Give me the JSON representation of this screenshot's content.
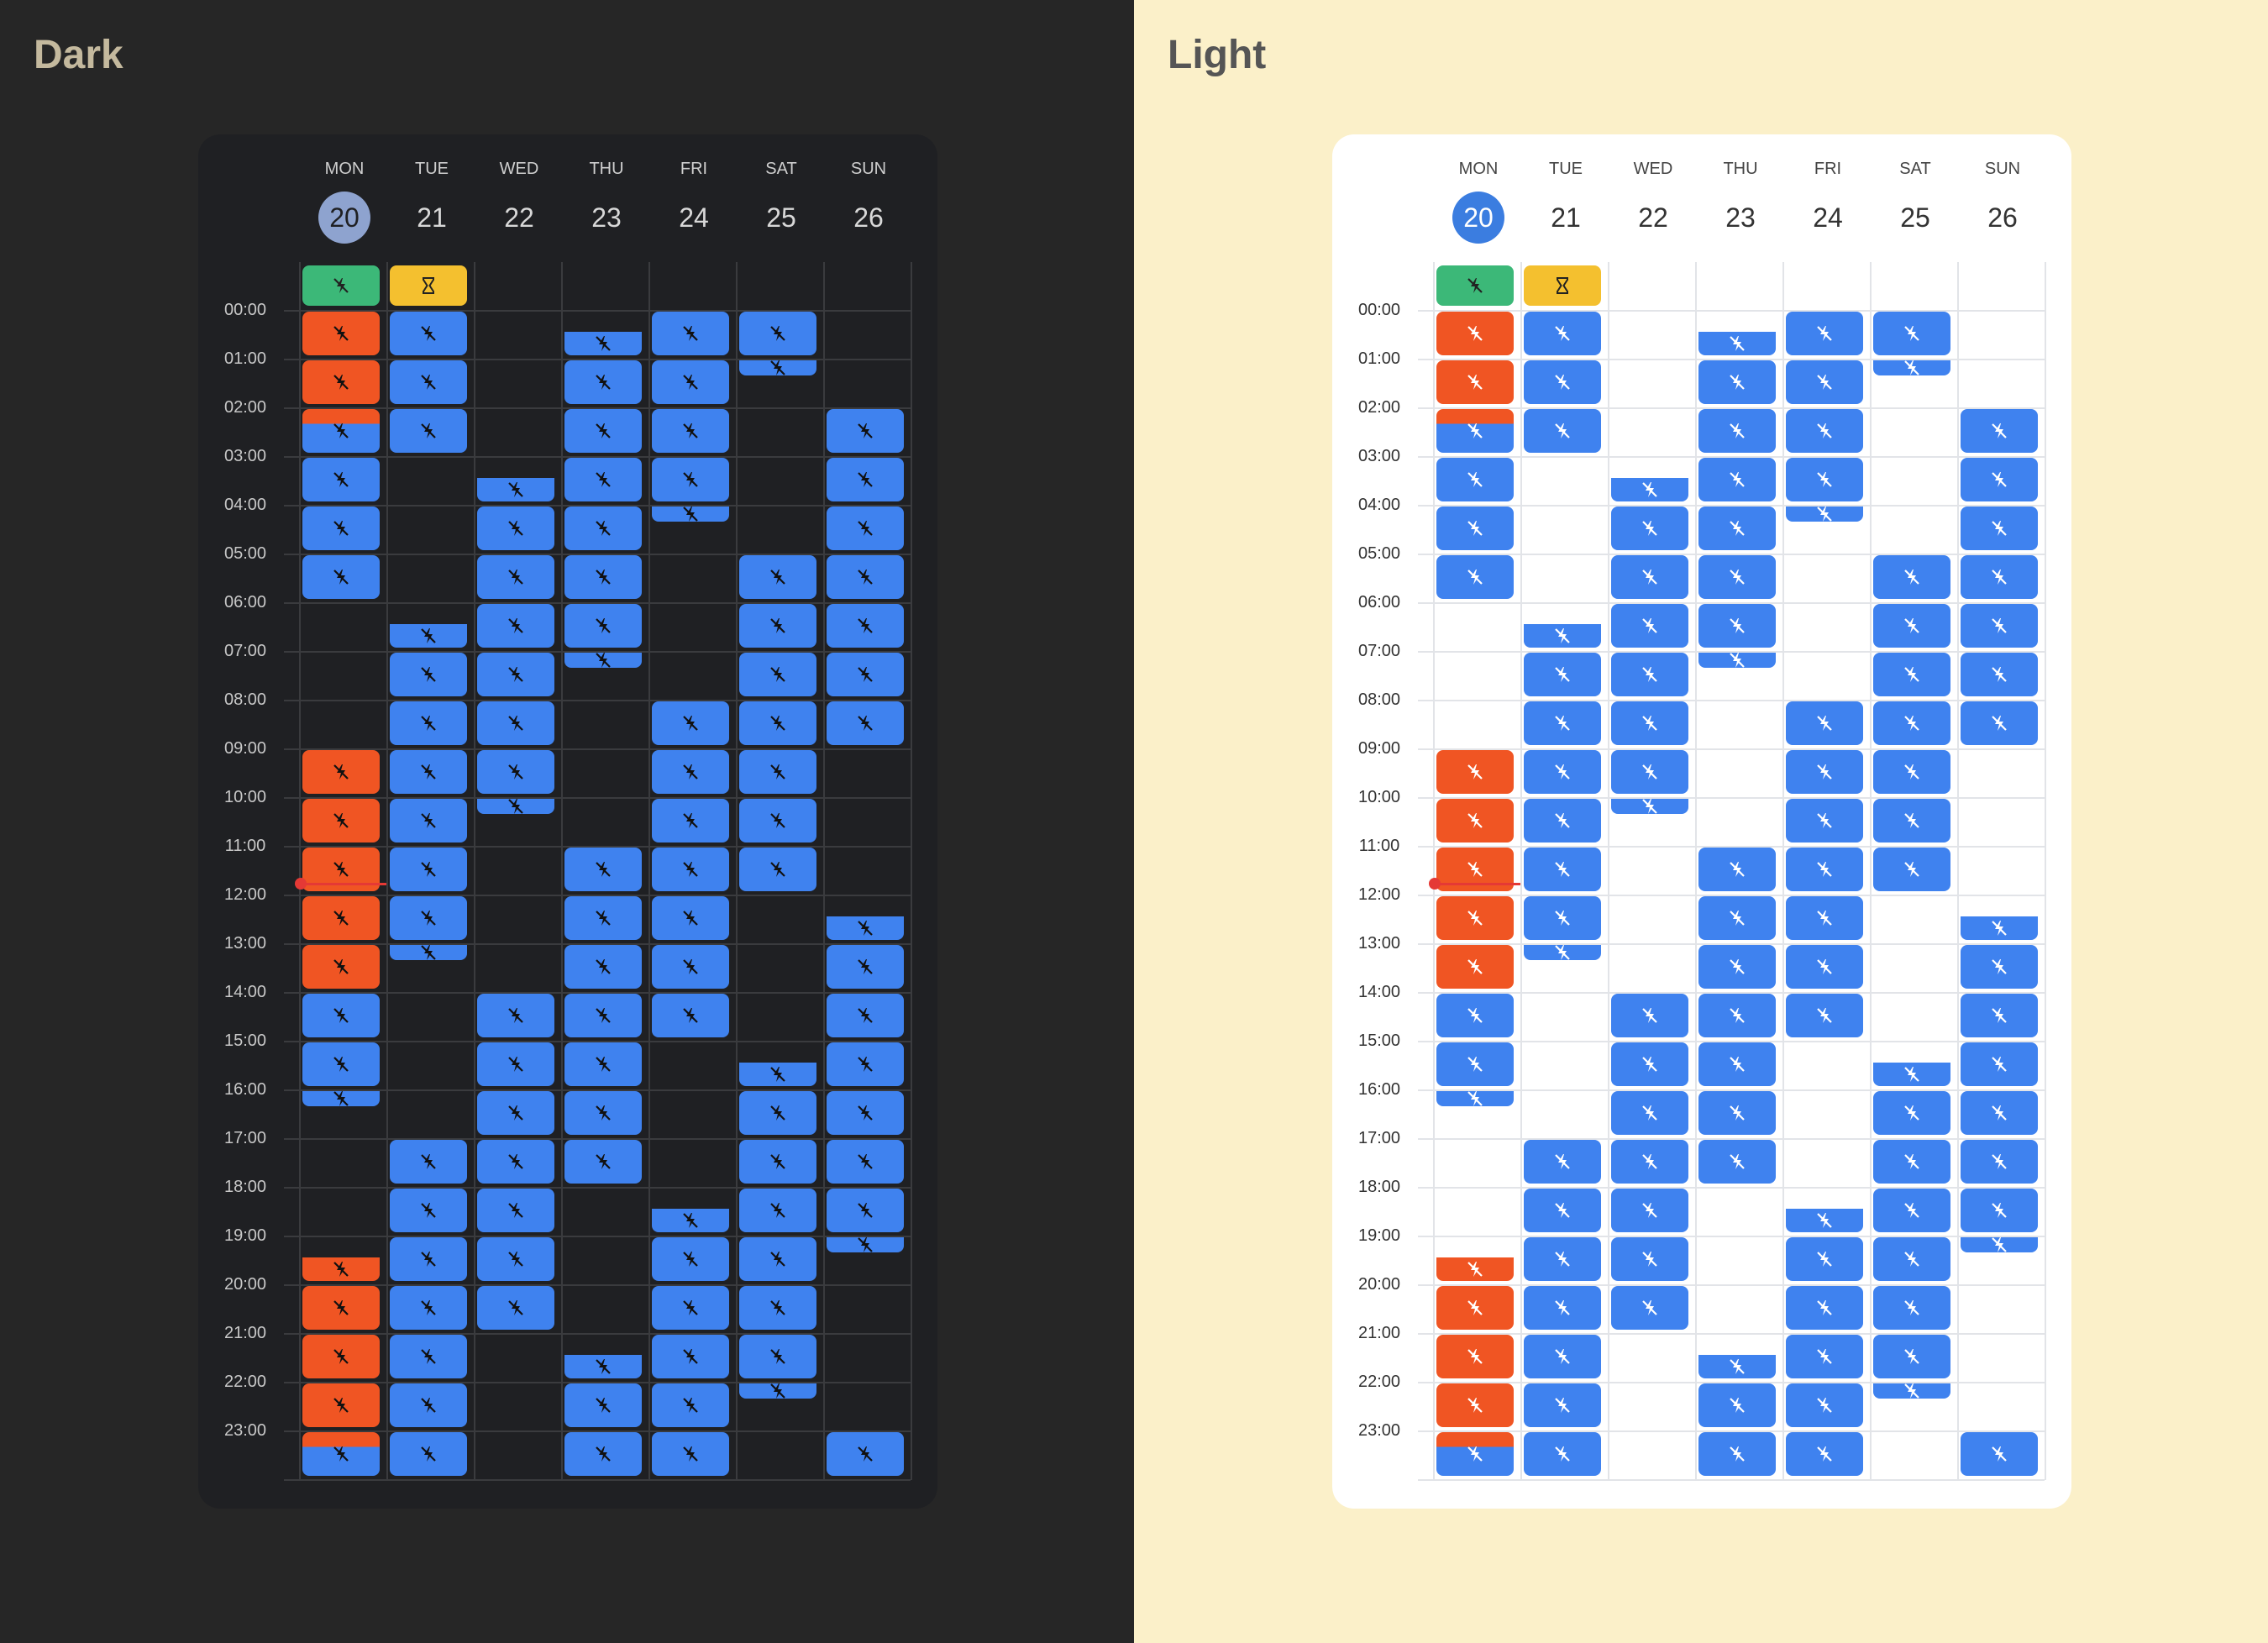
{
  "panels": {
    "dark": {
      "title": "Dark"
    },
    "light": {
      "title": "Light"
    }
  },
  "calendar": {
    "days": [
      {
        "dow": "MON",
        "num": "20",
        "today": true
      },
      {
        "dow": "TUE",
        "num": "21",
        "today": false
      },
      {
        "dow": "WED",
        "num": "22",
        "today": false
      },
      {
        "dow": "THU",
        "num": "23",
        "today": false
      },
      {
        "dow": "FRI",
        "num": "24",
        "today": false
      },
      {
        "dow": "SAT",
        "num": "25",
        "today": false
      },
      {
        "dow": "SUN",
        "num": "26",
        "today": false
      }
    ],
    "hours": [
      "00:00",
      "01:00",
      "02:00",
      "03:00",
      "04:00",
      "05:00",
      "06:00",
      "07:00",
      "08:00",
      "09:00",
      "10:00",
      "11:00",
      "12:00",
      "13:00",
      "14:00",
      "15:00",
      "16:00",
      "17:00",
      "18:00",
      "19:00",
      "20:00",
      "21:00",
      "22:00",
      "23:00"
    ],
    "now_time": "11:45",
    "colors": {
      "blue": "#3f82ef",
      "orange": "#f05523",
      "green": "#3cb878",
      "yellow": "#f4c02f",
      "now": "#e53935"
    },
    "icons": {
      "event": "flash-off-icon",
      "allday_green": "flash-off-icon",
      "allday_yellow": "hourglass-icon"
    },
    "allday": [
      {
        "day": 0,
        "color": "green",
        "icon": "flash-off-icon"
      },
      {
        "day": 1,
        "color": "yellow",
        "icon": "hourglass-icon"
      }
    ],
    "events": [
      {
        "day": 0,
        "start": "00:00",
        "end": "01:00",
        "color": "orange"
      },
      {
        "day": 0,
        "start": "01:00",
        "end": "02:00",
        "color": "orange"
      },
      {
        "day": 0,
        "start": "02:00",
        "end": "03:00",
        "color": "blue",
        "top_color": "orange",
        "split": "02:20"
      },
      {
        "day": 0,
        "start": "03:00",
        "end": "04:00",
        "color": "blue"
      },
      {
        "day": 0,
        "start": "04:00",
        "end": "05:00",
        "color": "blue"
      },
      {
        "day": 0,
        "start": "05:00",
        "end": "06:00",
        "color": "blue"
      },
      {
        "day": 0,
        "start": "09:00",
        "end": "10:00",
        "color": "orange"
      },
      {
        "day": 0,
        "start": "10:00",
        "end": "11:00",
        "color": "orange"
      },
      {
        "day": 0,
        "start": "11:00",
        "end": "12:00",
        "color": "orange"
      },
      {
        "day": 0,
        "start": "12:00",
        "end": "13:00",
        "color": "orange"
      },
      {
        "day": 0,
        "start": "13:00",
        "end": "14:00",
        "color": "orange"
      },
      {
        "day": 0,
        "start": "14:00",
        "end": "15:00",
        "color": "blue"
      },
      {
        "day": 0,
        "start": "15:00",
        "end": "16:00",
        "color": "blue"
      },
      {
        "day": 0,
        "start": "16:00",
        "end": "16:25",
        "color": "blue"
      },
      {
        "day": 0,
        "start": "19:25",
        "end": "20:00",
        "color": "orange"
      },
      {
        "day": 0,
        "start": "20:00",
        "end": "21:00",
        "color": "orange"
      },
      {
        "day": 0,
        "start": "21:00",
        "end": "22:00",
        "color": "orange"
      },
      {
        "day": 0,
        "start": "22:00",
        "end": "23:00",
        "color": "orange"
      },
      {
        "day": 0,
        "start": "23:00",
        "end": "24:00",
        "color": "blue",
        "top_color": "orange",
        "split": "23:20"
      },
      {
        "day": 1,
        "start": "00:00",
        "end": "01:00",
        "color": "blue"
      },
      {
        "day": 1,
        "start": "01:00",
        "end": "02:00",
        "color": "blue"
      },
      {
        "day": 1,
        "start": "02:00",
        "end": "03:00",
        "color": "blue"
      },
      {
        "day": 1,
        "start": "06:25",
        "end": "07:00",
        "color": "blue"
      },
      {
        "day": 1,
        "start": "07:00",
        "end": "08:00",
        "color": "blue"
      },
      {
        "day": 1,
        "start": "08:00",
        "end": "09:00",
        "color": "blue"
      },
      {
        "day": 1,
        "start": "09:00",
        "end": "10:00",
        "color": "blue"
      },
      {
        "day": 1,
        "start": "10:00",
        "end": "11:00",
        "color": "blue"
      },
      {
        "day": 1,
        "start": "11:00",
        "end": "12:00",
        "color": "blue"
      },
      {
        "day": 1,
        "start": "12:00",
        "end": "13:00",
        "color": "blue"
      },
      {
        "day": 1,
        "start": "13:00",
        "end": "13:25",
        "color": "blue"
      },
      {
        "day": 1,
        "start": "17:00",
        "end": "18:00",
        "color": "blue"
      },
      {
        "day": 1,
        "start": "18:00",
        "end": "19:00",
        "color": "blue"
      },
      {
        "day": 1,
        "start": "19:00",
        "end": "20:00",
        "color": "blue"
      },
      {
        "day": 1,
        "start": "20:00",
        "end": "21:00",
        "color": "blue"
      },
      {
        "day": 1,
        "start": "21:00",
        "end": "22:00",
        "color": "blue"
      },
      {
        "day": 1,
        "start": "22:00",
        "end": "23:00",
        "color": "blue"
      },
      {
        "day": 1,
        "start": "23:00",
        "end": "24:00",
        "color": "blue"
      },
      {
        "day": 2,
        "start": "03:25",
        "end": "04:00",
        "color": "blue"
      },
      {
        "day": 2,
        "start": "04:00",
        "end": "05:00",
        "color": "blue"
      },
      {
        "day": 2,
        "start": "05:00",
        "end": "06:00",
        "color": "blue"
      },
      {
        "day": 2,
        "start": "06:00",
        "end": "07:00",
        "color": "blue"
      },
      {
        "day": 2,
        "start": "07:00",
        "end": "08:00",
        "color": "blue"
      },
      {
        "day": 2,
        "start": "08:00",
        "end": "09:00",
        "color": "blue"
      },
      {
        "day": 2,
        "start": "09:00",
        "end": "10:00",
        "color": "blue"
      },
      {
        "day": 2,
        "start": "10:00",
        "end": "10:25",
        "color": "blue"
      },
      {
        "day": 2,
        "start": "14:00",
        "end": "15:00",
        "color": "blue"
      },
      {
        "day": 2,
        "start": "15:00",
        "end": "16:00",
        "color": "blue"
      },
      {
        "day": 2,
        "start": "16:00",
        "end": "17:00",
        "color": "blue"
      },
      {
        "day": 2,
        "start": "17:00",
        "end": "18:00",
        "color": "blue"
      },
      {
        "day": 2,
        "start": "18:00",
        "end": "19:00",
        "color": "blue"
      },
      {
        "day": 2,
        "start": "19:00",
        "end": "20:00",
        "color": "blue"
      },
      {
        "day": 2,
        "start": "20:00",
        "end": "21:00",
        "color": "blue"
      },
      {
        "day": 3,
        "start": "00:25",
        "end": "01:00",
        "color": "blue"
      },
      {
        "day": 3,
        "start": "01:00",
        "end": "02:00",
        "color": "blue"
      },
      {
        "day": 3,
        "start": "02:00",
        "end": "03:00",
        "color": "blue"
      },
      {
        "day": 3,
        "start": "03:00",
        "end": "04:00",
        "color": "blue"
      },
      {
        "day": 3,
        "start": "04:00",
        "end": "05:00",
        "color": "blue"
      },
      {
        "day": 3,
        "start": "05:00",
        "end": "06:00",
        "color": "blue"
      },
      {
        "day": 3,
        "start": "06:00",
        "end": "07:00",
        "color": "blue"
      },
      {
        "day": 3,
        "start": "07:00",
        "end": "07:25",
        "color": "blue"
      },
      {
        "day": 3,
        "start": "11:00",
        "end": "12:00",
        "color": "blue"
      },
      {
        "day": 3,
        "start": "12:00",
        "end": "13:00",
        "color": "blue"
      },
      {
        "day": 3,
        "start": "13:00",
        "end": "14:00",
        "color": "blue"
      },
      {
        "day": 3,
        "start": "14:00",
        "end": "15:00",
        "color": "blue"
      },
      {
        "day": 3,
        "start": "15:00",
        "end": "16:00",
        "color": "blue"
      },
      {
        "day": 3,
        "start": "16:00",
        "end": "17:00",
        "color": "blue"
      },
      {
        "day": 3,
        "start": "17:00",
        "end": "18:00",
        "color": "blue"
      },
      {
        "day": 3,
        "start": "21:25",
        "end": "22:00",
        "color": "blue"
      },
      {
        "day": 3,
        "start": "22:00",
        "end": "23:00",
        "color": "blue"
      },
      {
        "day": 3,
        "start": "23:00",
        "end": "24:00",
        "color": "blue"
      },
      {
        "day": 4,
        "start": "00:00",
        "end": "01:00",
        "color": "blue"
      },
      {
        "day": 4,
        "start": "01:00",
        "end": "02:00",
        "color": "blue"
      },
      {
        "day": 4,
        "start": "02:00",
        "end": "03:00",
        "color": "blue"
      },
      {
        "day": 4,
        "start": "03:00",
        "end": "04:00",
        "color": "blue"
      },
      {
        "day": 4,
        "start": "04:00",
        "end": "04:25",
        "color": "blue"
      },
      {
        "day": 4,
        "start": "08:00",
        "end": "09:00",
        "color": "blue"
      },
      {
        "day": 4,
        "start": "09:00",
        "end": "10:00",
        "color": "blue"
      },
      {
        "day": 4,
        "start": "10:00",
        "end": "11:00",
        "color": "blue"
      },
      {
        "day": 4,
        "start": "11:00",
        "end": "12:00",
        "color": "blue"
      },
      {
        "day": 4,
        "start": "12:00",
        "end": "13:00",
        "color": "blue"
      },
      {
        "day": 4,
        "start": "13:00",
        "end": "14:00",
        "color": "blue"
      },
      {
        "day": 4,
        "start": "14:00",
        "end": "15:00",
        "color": "blue"
      },
      {
        "day": 4,
        "start": "18:25",
        "end": "19:00",
        "color": "blue"
      },
      {
        "day": 4,
        "start": "19:00",
        "end": "20:00",
        "color": "blue"
      },
      {
        "day": 4,
        "start": "20:00",
        "end": "21:00",
        "color": "blue"
      },
      {
        "day": 4,
        "start": "21:00",
        "end": "22:00",
        "color": "blue"
      },
      {
        "day": 4,
        "start": "22:00",
        "end": "23:00",
        "color": "blue"
      },
      {
        "day": 4,
        "start": "23:00",
        "end": "24:00",
        "color": "blue"
      },
      {
        "day": 5,
        "start": "00:00",
        "end": "01:00",
        "color": "blue"
      },
      {
        "day": 5,
        "start": "01:00",
        "end": "01:25",
        "color": "blue"
      },
      {
        "day": 5,
        "start": "05:00",
        "end": "06:00",
        "color": "blue"
      },
      {
        "day": 5,
        "start": "06:00",
        "end": "07:00",
        "color": "blue"
      },
      {
        "day": 5,
        "start": "07:00",
        "end": "08:00",
        "color": "blue"
      },
      {
        "day": 5,
        "start": "08:00",
        "end": "09:00",
        "color": "blue"
      },
      {
        "day": 5,
        "start": "09:00",
        "end": "10:00",
        "color": "blue"
      },
      {
        "day": 5,
        "start": "10:00",
        "end": "11:00",
        "color": "blue"
      },
      {
        "day": 5,
        "start": "11:00",
        "end": "12:00",
        "color": "blue"
      },
      {
        "day": 5,
        "start": "15:25",
        "end": "16:00",
        "color": "blue"
      },
      {
        "day": 5,
        "start": "16:00",
        "end": "17:00",
        "color": "blue"
      },
      {
        "day": 5,
        "start": "17:00",
        "end": "18:00",
        "color": "blue"
      },
      {
        "day": 5,
        "start": "18:00",
        "end": "19:00",
        "color": "blue"
      },
      {
        "day": 5,
        "start": "19:00",
        "end": "20:00",
        "color": "blue"
      },
      {
        "day": 5,
        "start": "20:00",
        "end": "21:00",
        "color": "blue"
      },
      {
        "day": 5,
        "start": "21:00",
        "end": "22:00",
        "color": "blue"
      },
      {
        "day": 5,
        "start": "22:00",
        "end": "22:25",
        "color": "blue"
      },
      {
        "day": 6,
        "start": "02:00",
        "end": "03:00",
        "color": "blue"
      },
      {
        "day": 6,
        "start": "03:00",
        "end": "04:00",
        "color": "blue"
      },
      {
        "day": 6,
        "start": "04:00",
        "end": "05:00",
        "color": "blue"
      },
      {
        "day": 6,
        "start": "05:00",
        "end": "06:00",
        "color": "blue"
      },
      {
        "day": 6,
        "start": "06:00",
        "end": "07:00",
        "color": "blue"
      },
      {
        "day": 6,
        "start": "07:00",
        "end": "08:00",
        "color": "blue"
      },
      {
        "day": 6,
        "start": "08:00",
        "end": "09:00",
        "color": "blue"
      },
      {
        "day": 6,
        "start": "12:25",
        "end": "13:00",
        "color": "blue"
      },
      {
        "day": 6,
        "start": "13:00",
        "end": "14:00",
        "color": "blue"
      },
      {
        "day": 6,
        "start": "14:00",
        "end": "15:00",
        "color": "blue"
      },
      {
        "day": 6,
        "start": "15:00",
        "end": "16:00",
        "color": "blue"
      },
      {
        "day": 6,
        "start": "16:00",
        "end": "17:00",
        "color": "blue"
      },
      {
        "day": 6,
        "start": "17:00",
        "end": "18:00",
        "color": "blue"
      },
      {
        "day": 6,
        "start": "18:00",
        "end": "19:00",
        "color": "blue"
      },
      {
        "day": 6,
        "start": "19:00",
        "end": "19:25",
        "color": "blue"
      },
      {
        "day": 6,
        "start": "23:00",
        "end": "24:00",
        "color": "blue"
      }
    ]
  }
}
